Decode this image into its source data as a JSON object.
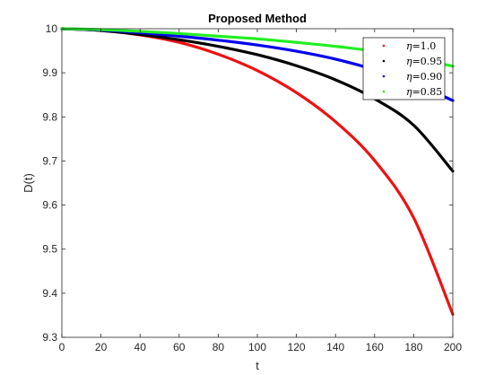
{
  "chart_data": {
    "type": "line",
    "title": "Proposed Method",
    "xlabel": "t",
    "ylabel": "D(t)",
    "xlim": [
      0,
      200
    ],
    "ylim": [
      9.3,
      10
    ],
    "xticks": [
      0,
      20,
      40,
      60,
      80,
      100,
      120,
      140,
      160,
      180,
      200
    ],
    "yticks": [
      9.3,
      9.4,
      9.5,
      9.6,
      9.7,
      9.8,
      9.9,
      10
    ],
    "xtick_labels": [
      "0",
      "20",
      "40",
      "60",
      "80",
      "100",
      "120",
      "140",
      "160",
      "180",
      "200"
    ],
    "ytick_labels": [
      "9.3",
      "9.4",
      "9.5",
      "9.6",
      "9.7",
      "9.8",
      "9.9",
      "10"
    ],
    "grid": false,
    "legend_position": "top-right",
    "x": [
      0,
      20,
      40,
      60,
      80,
      100,
      120,
      140,
      160,
      180,
      200
    ],
    "series": [
      {
        "name": "η=1.0",
        "eta_symbol": "η",
        "eta_value": "=1.0",
        "color": "#ee1111",
        "values": [
          10.0,
          9.996,
          9.986,
          9.969,
          9.942,
          9.905,
          9.855,
          9.789,
          9.701,
          9.571,
          9.352
        ]
      },
      {
        "name": "η=0.95",
        "eta_symbol": "η",
        "eta_value": "=0.95",
        "color": "#000000",
        "values": [
          10.0,
          9.996,
          9.987,
          9.975,
          9.96,
          9.941,
          9.916,
          9.884,
          9.841,
          9.781,
          9.677
        ]
      },
      {
        "name": "η=0.90",
        "eta_symbol": "η",
        "eta_value": "=0.90",
        "color": "#0000ee",
        "values": [
          10.0,
          9.997,
          9.991,
          9.983,
          9.974,
          9.963,
          9.949,
          9.931,
          9.907,
          9.877,
          9.837
        ]
      },
      {
        "name": "η=0.85",
        "eta_symbol": "η",
        "eta_value": "=0.85",
        "color": "#22ee22",
        "values": [
          10.0,
          9.998,
          9.994,
          9.989,
          9.983,
          9.977,
          9.969,
          9.96,
          9.949,
          9.934,
          9.915
        ]
      }
    ]
  }
}
